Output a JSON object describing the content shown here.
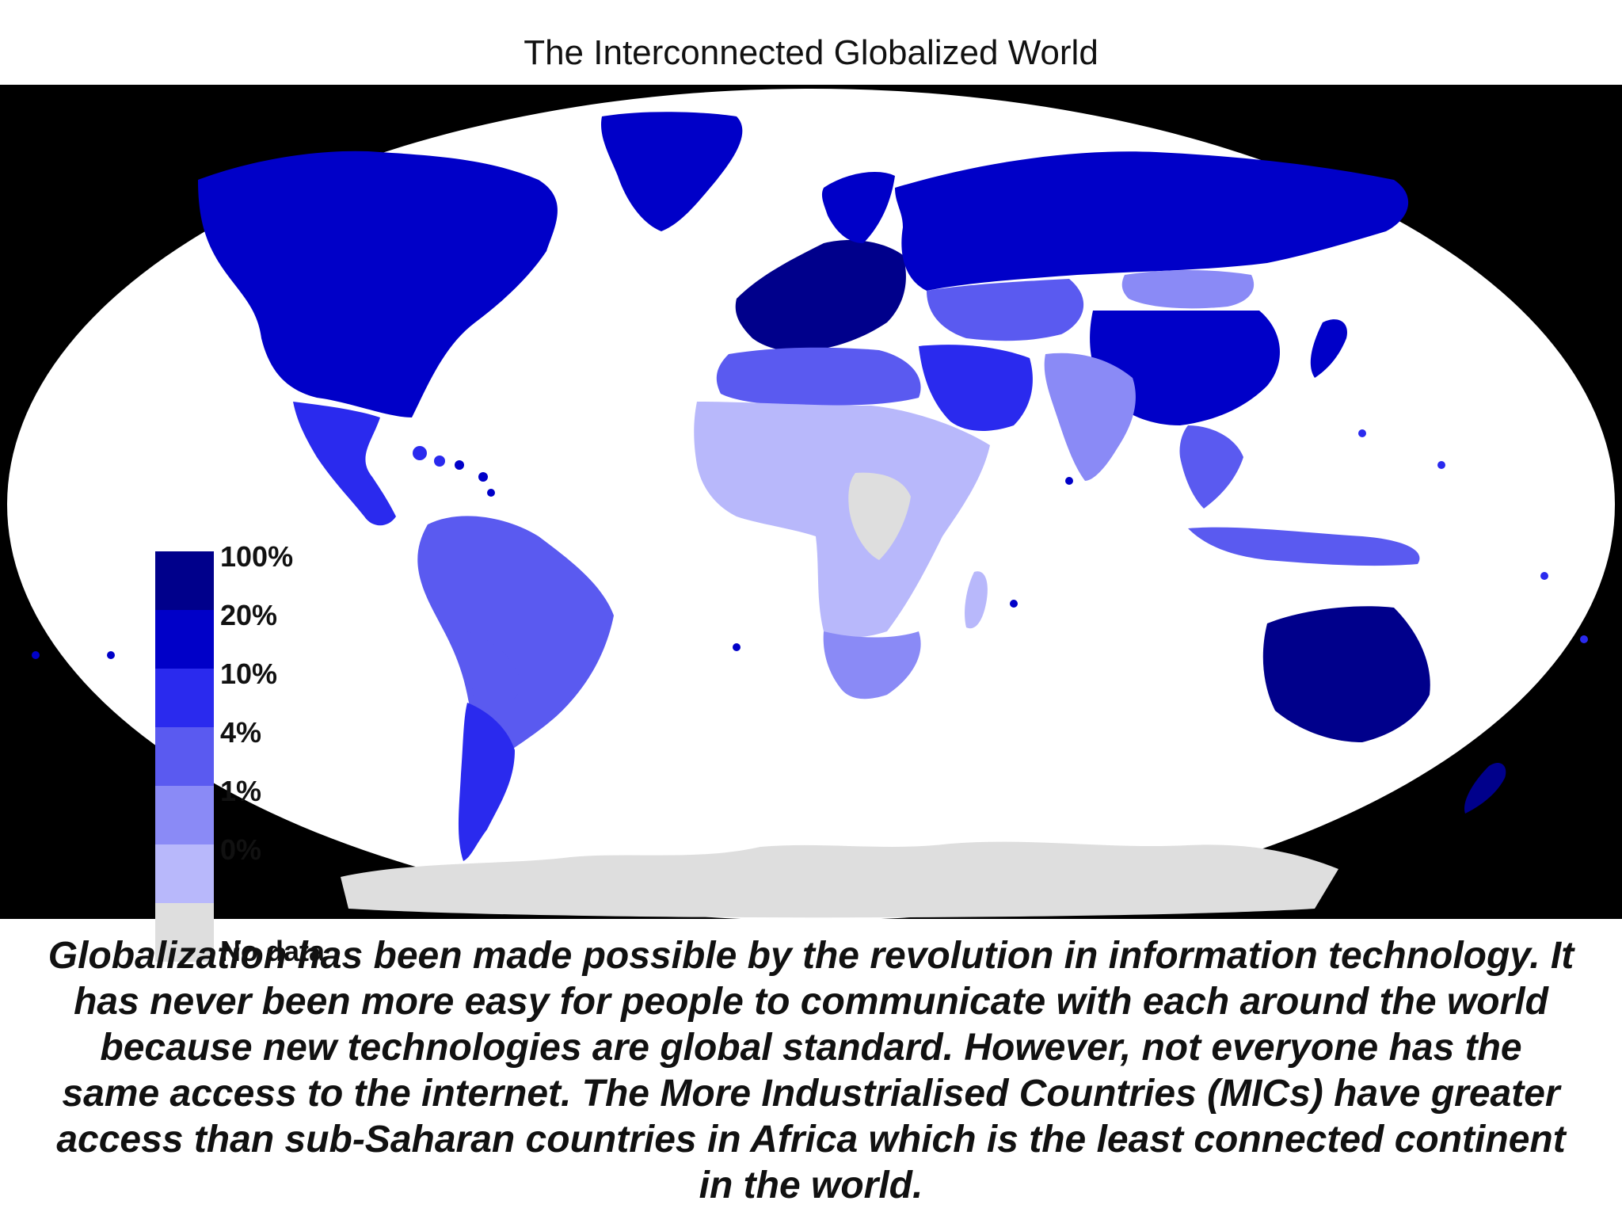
{
  "title": "The Interconnected Globalized World",
  "legend": {
    "items": [
      {
        "label": "100%",
        "color": "#00008b"
      },
      {
        "label": "20%",
        "color": "#0000c8"
      },
      {
        "label": "10%",
        "color": "#2a2aee"
      },
      {
        "label": "4%",
        "color": "#5a5af0"
      },
      {
        "label": "1%",
        "color": "#8a8af6"
      },
      {
        "label": "0%",
        "color": "#b8b8fb"
      },
      {
        "label": "No data",
        "color": "#dedede"
      }
    ]
  },
  "map": {
    "ocean_color": "#ffffff",
    "background_color": "#000000",
    "antarctica_color": "#dedede",
    "regions": [
      {
        "name": "north-america",
        "level": "20%"
      },
      {
        "name": "greenland",
        "level": "20%"
      },
      {
        "name": "mexico-central-america",
        "level": "10%"
      },
      {
        "name": "south-america",
        "level": "4%"
      },
      {
        "name": "argentina-chile",
        "level": "10%"
      },
      {
        "name": "europe",
        "level": "100%"
      },
      {
        "name": "russia",
        "level": "20%"
      },
      {
        "name": "north-africa",
        "level": "4%"
      },
      {
        "name": "sub-saharan-africa",
        "level": "0%"
      },
      {
        "name": "southern-africa",
        "level": "1%"
      },
      {
        "name": "middle-east",
        "level": "10%"
      },
      {
        "name": "central-asia",
        "level": "4%"
      },
      {
        "name": "south-asia",
        "level": "1%"
      },
      {
        "name": "china",
        "level": "20%"
      },
      {
        "name": "southeast-asia",
        "level": "4%"
      },
      {
        "name": "australia",
        "level": "100%"
      },
      {
        "name": "new-zealand",
        "level": "100%"
      },
      {
        "name": "madagascar",
        "level": "0%"
      }
    ]
  },
  "caption": "Globalization has been made possible by the revolution in information technology. It has never been more easy for people to communicate with each around the world because new technologies are global standard. However, not everyone has the same access to the internet. The More Industrialised Countries (MICs) have greater access than sub-Saharan countries in Africa which is the least connected continent in the world."
}
